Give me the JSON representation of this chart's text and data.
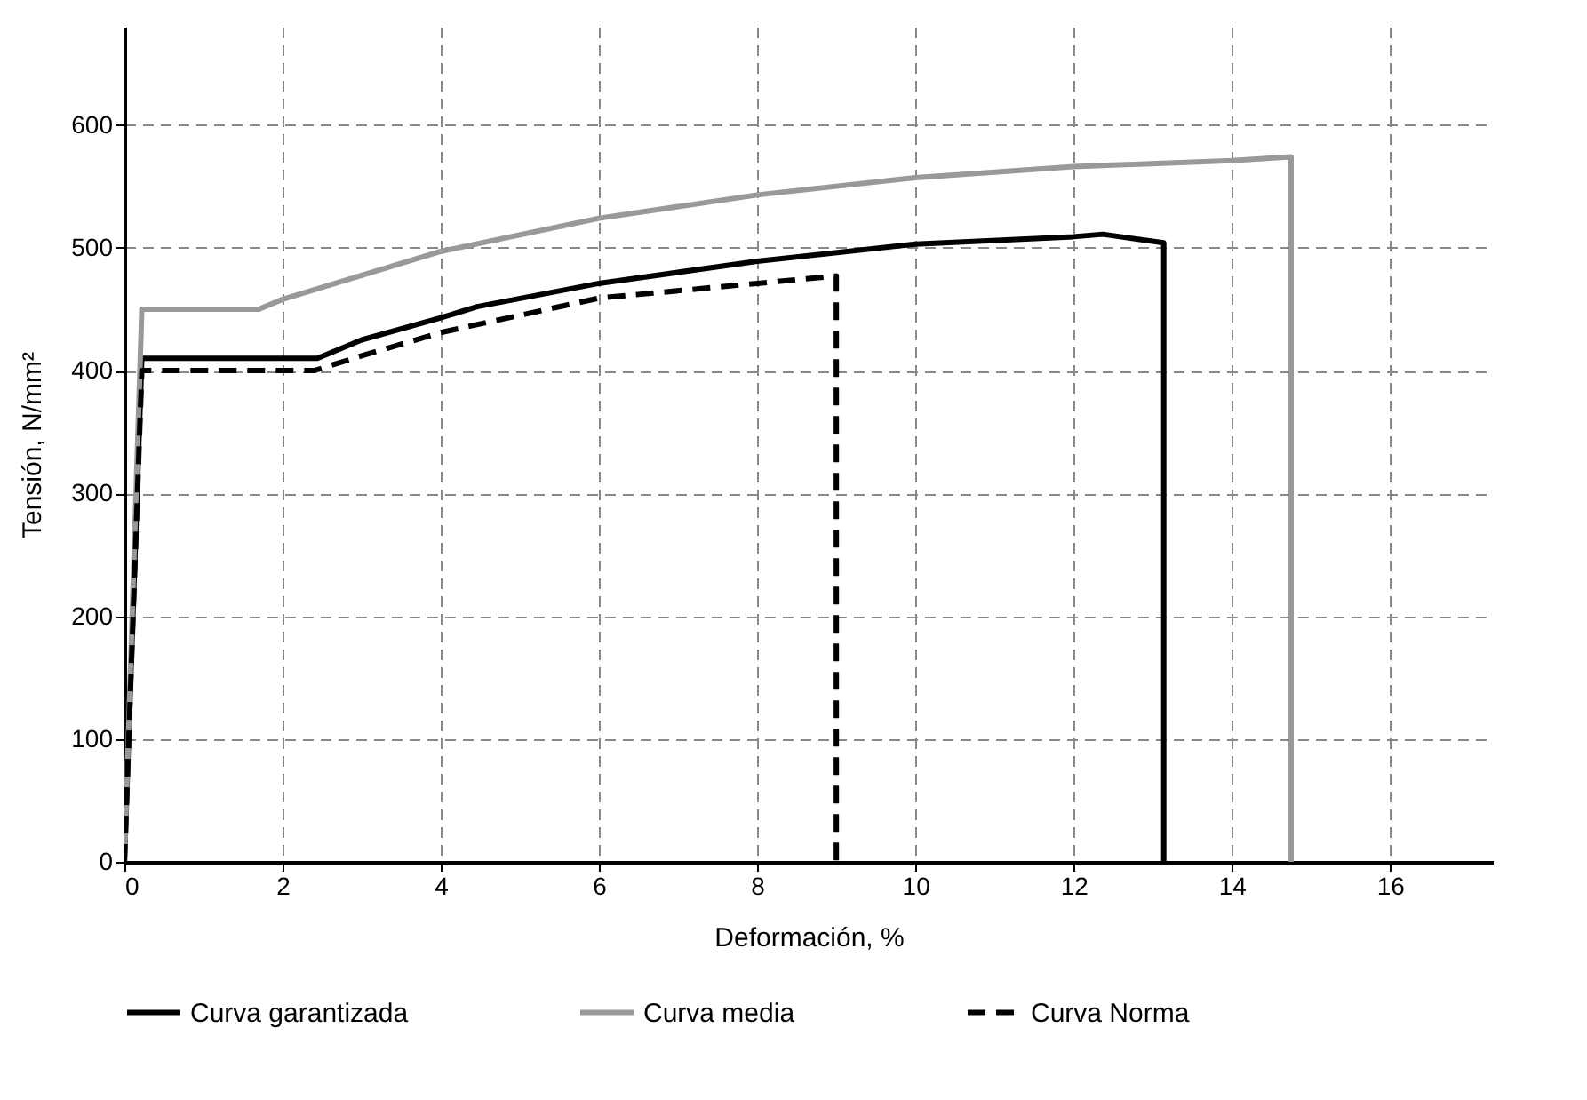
{
  "chart_data": {
    "type": "line",
    "xlabel": "Deformación, %",
    "ylabel": "Tensión, N/mm²",
    "xlim": [
      0,
      17.3
    ],
    "ylim": [
      0,
      680
    ],
    "xticks": [
      0,
      2,
      4,
      6,
      8,
      10,
      12,
      14,
      16
    ],
    "yticks": [
      0,
      100,
      200,
      300,
      400,
      500,
      600
    ],
    "grid": true,
    "legend": "bottom",
    "marker": "none",
    "series": [
      {
        "name": "Curva garantizada",
        "color": "#000000",
        "line_style": "solid",
        "x": [
          0,
          0.22,
          2.44,
          3,
          4,
          4.46,
          6,
          8,
          10,
          12,
          12.37,
          13.14,
          13.14
        ],
        "values": [
          0,
          410,
          410,
          425,
          443,
          452,
          471,
          489,
          503,
          509,
          511,
          504,
          0
        ]
      },
      {
        "name": "Curva media",
        "color": "#999999",
        "line_style": "solid",
        "x": [
          0,
          0.22,
          1.7,
          2,
          4,
          6,
          8,
          10,
          12,
          14,
          14.75,
          14.75
        ],
        "values": [
          0,
          450,
          450,
          458,
          497,
          524,
          543,
          557,
          566,
          571,
          574,
          0
        ]
      },
      {
        "name": "Curva Norma",
        "color": "#000000",
        "line_style": "dashed",
        "x": [
          0,
          0.22,
          2.4,
          3,
          4,
          6,
          8,
          9,
          9
        ],
        "values": [
          0,
          400,
          400,
          412,
          431,
          459,
          471,
          477,
          0
        ]
      }
    ]
  }
}
